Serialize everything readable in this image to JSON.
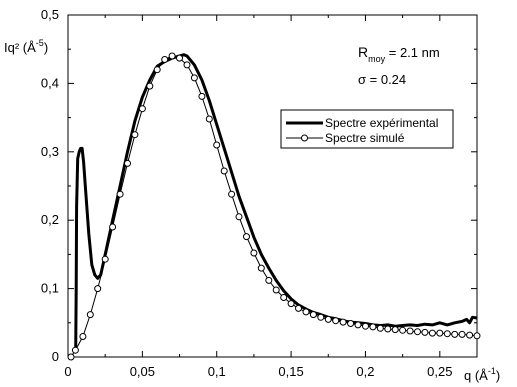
{
  "chart_data": {
    "type": "line",
    "title": "",
    "xlabel": {
      "base": "q (Å",
      "exp": "-1",
      "close": ")"
    },
    "ylabel": {
      "base": "Iq² (Å",
      "exp": "-5",
      "close": ")"
    },
    "xlim": [
      0,
      0.275
    ],
    "ylim": [
      0,
      0.5
    ],
    "xticks": [
      0,
      0.05,
      0.1,
      0.15,
      0.2,
      0.25
    ],
    "xtick_labels": [
      "0",
      "0,05",
      "0,1",
      "0,15",
      "0,2",
      "0,25"
    ],
    "yticks": [
      0,
      0.1,
      0.2,
      0.3,
      0.4,
      0.5
    ],
    "ytick_labels": [
      "0",
      "0,1",
      "0,2",
      "0,3",
      "0,4",
      "0,5"
    ],
    "grid": false,
    "legend_position": "right-middle",
    "annotations": {
      "r_base": "R",
      "r_sub": "moy",
      "r_value": " = 2.1 nm",
      "sigma": "σ  = 0.24"
    },
    "series": [
      {
        "name": "Spectre expérimental",
        "style": "thick-line",
        "color": "#000000",
        "x": [
          0.0052,
          0.0055,
          0.0058,
          0.0065,
          0.0075,
          0.0085,
          0.0095,
          0.0105,
          0.012,
          0.014,
          0.016,
          0.018,
          0.02,
          0.022,
          0.025,
          0.03,
          0.035,
          0.04,
          0.045,
          0.05,
          0.055,
          0.06,
          0.065,
          0.07,
          0.075,
          0.078,
          0.08,
          0.085,
          0.09,
          0.095,
          0.1,
          0.105,
          0.11,
          0.115,
          0.12,
          0.125,
          0.13,
          0.135,
          0.14,
          0.145,
          0.15,
          0.155,
          0.16,
          0.165,
          0.17,
          0.175,
          0.18,
          0.185,
          0.19,
          0.195,
          0.2,
          0.205,
          0.21,
          0.215,
          0.22,
          0.225,
          0.23,
          0.235,
          0.24,
          0.245,
          0.25,
          0.255,
          0.26,
          0.265,
          0.268,
          0.27,
          0.272,
          0.275
        ],
        "y": [
          0.01,
          0.1,
          0.22,
          0.29,
          0.3,
          0.305,
          0.305,
          0.285,
          0.24,
          0.18,
          0.135,
          0.12,
          0.115,
          0.12,
          0.15,
          0.2,
          0.25,
          0.3,
          0.345,
          0.38,
          0.405,
          0.425,
          0.432,
          0.437,
          0.44,
          0.442,
          0.44,
          0.427,
          0.405,
          0.375,
          0.34,
          0.305,
          0.27,
          0.235,
          0.205,
          0.175,
          0.15,
          0.13,
          0.112,
          0.097,
          0.085,
          0.076,
          0.07,
          0.065,
          0.062,
          0.058,
          0.056,
          0.053,
          0.051,
          0.05,
          0.049,
          0.047,
          0.046,
          0.047,
          0.045,
          0.046,
          0.047,
          0.046,
          0.048,
          0.047,
          0.05,
          0.047,
          0.05,
          0.052,
          0.055,
          0.05,
          0.058,
          0.057
        ]
      },
      {
        "name": "Spectre simulé",
        "style": "thin-line-circles",
        "color": "#000000",
        "x": [
          0.002,
          0.005,
          0.01,
          0.015,
          0.02,
          0.025,
          0.03,
          0.035,
          0.04,
          0.045,
          0.05,
          0.055,
          0.06,
          0.065,
          0.07,
          0.075,
          0.08,
          0.085,
          0.09,
          0.095,
          0.1,
          0.105,
          0.11,
          0.115,
          0.12,
          0.125,
          0.13,
          0.135,
          0.14,
          0.145,
          0.15,
          0.155,
          0.16,
          0.165,
          0.17,
          0.175,
          0.18,
          0.185,
          0.19,
          0.195,
          0.2,
          0.205,
          0.21,
          0.215,
          0.22,
          0.225,
          0.23,
          0.235,
          0.24,
          0.245,
          0.25,
          0.255,
          0.26,
          0.265,
          0.27,
          0.275
        ],
        "y": [
          0.0,
          0.01,
          0.03,
          0.062,
          0.1,
          0.143,
          0.19,
          0.238,
          0.283,
          0.325,
          0.363,
          0.396,
          0.42,
          0.435,
          0.44,
          0.437,
          0.427,
          0.408,
          0.381,
          0.348,
          0.31,
          0.272,
          0.238,
          0.205,
          0.176,
          0.152,
          0.13,
          0.112,
          0.098,
          0.087,
          0.078,
          0.071,
          0.066,
          0.062,
          0.058,
          0.055,
          0.053,
          0.051,
          0.049,
          0.047,
          0.045,
          0.044,
          0.042,
          0.041,
          0.04,
          0.039,
          0.038,
          0.037,
          0.036,
          0.035,
          0.035,
          0.034,
          0.033,
          0.033,
          0.032,
          0.031
        ]
      }
    ]
  }
}
